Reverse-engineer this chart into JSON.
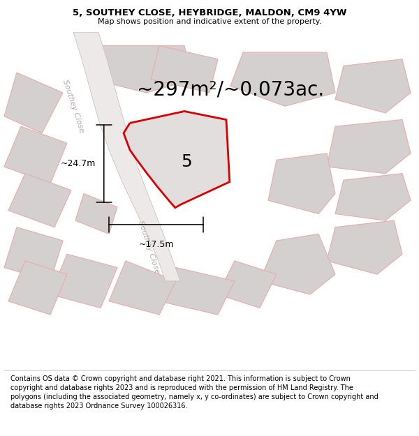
{
  "title": "5, SOUTHEY CLOSE, HEYBRIDGE, MALDON, CM9 4YW",
  "subtitle": "Map shows position and indicative extent of the property.",
  "footer": "Contains OS data © Crown copyright and database right 2021. This information is subject to Crown copyright and database rights 2023 and is reproduced with the permission of HM Land Registry. The polygons (including the associated geometry, namely x, y co-ordinates) are subject to Crown copyright and database rights 2023 Ordnance Survey 100026316.",
  "area_text": "~297m²/~0.073ac.",
  "property_number": "5",
  "dim_height": "~24.7m",
  "dim_width": "~17.5m",
  "road_label_top": "Southey Close",
  "road_label_bottom": "Southey Close",
  "map_bg": "#ede9e9",
  "title_bg": "#ffffff",
  "footer_bg": "#ffffff",
  "title_fontsize": 9.5,
  "subtitle_fontsize": 8,
  "footer_fontsize": 7,
  "area_fontsize": 20,
  "number_fontsize": 18,
  "dim_fontsize": 9,
  "road_label_fontsize": 8,
  "plot_fill": "#e2dede",
  "plot_edge_color": "#dd0000",
  "plot_edge_width": 2.0,
  "building_fill": "#d4d0d0",
  "building_edge": "#e8b0b0",
  "building_lw": 0.9,
  "road_fill": "#ede9e9",
  "road_edge": "#c8c4c4",
  "road_label_color": "#b0aaaa"
}
